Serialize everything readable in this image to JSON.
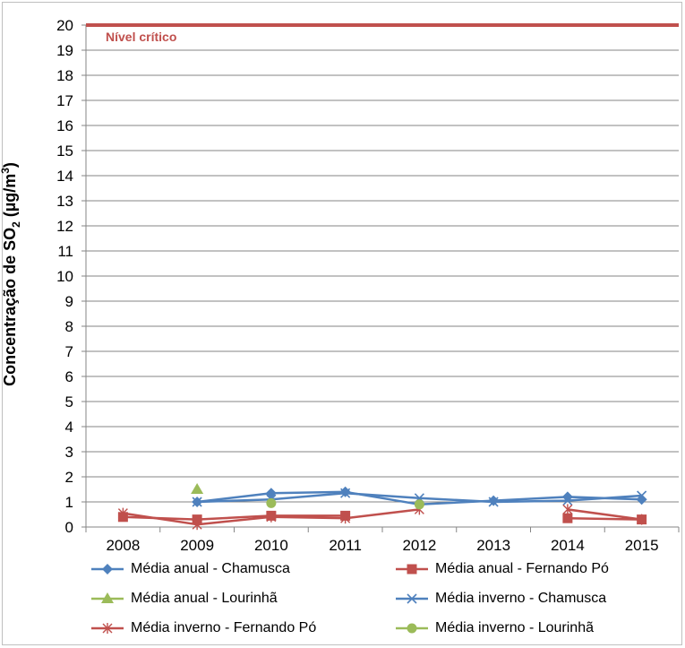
{
  "chart_data": {
    "type": "line",
    "title": "",
    "xlabel": "",
    "ylabel_parts": [
      "Concentração de SO",
      "2",
      " (µg/m",
      "3",
      ")"
    ],
    "categories": [
      "2008",
      "2009",
      "2010",
      "2011",
      "2012",
      "2013",
      "2014",
      "2015"
    ],
    "ylim": [
      0,
      20
    ],
    "yticks": [
      "0",
      "1",
      "2",
      "3",
      "4",
      "5",
      "6",
      "7",
      "8",
      "9",
      "10",
      "11",
      "12",
      "13",
      "14",
      "15",
      "16",
      "17",
      "18",
      "19",
      "20"
    ],
    "grid": true,
    "legend_placement": "bottom",
    "reference_line": {
      "value": 20,
      "label": "Nível crítico",
      "color": "#c0504d"
    },
    "series": [
      {
        "name": "Média anual - Chamusca",
        "color": "#4f81bd",
        "marker": "diamond",
        "values": [
          null,
          1.0,
          1.35,
          1.4,
          0.9,
          1.05,
          1.2,
          1.1
        ]
      },
      {
        "name": "Média anual - Fernando Pó",
        "color": "#c0504d",
        "marker": "square",
        "values": [
          0.4,
          0.3,
          0.45,
          0.45,
          null,
          null,
          0.35,
          0.3
        ]
      },
      {
        "name": "Média anual - Lourinhã",
        "color": "#9bbb59",
        "marker": "triangle",
        "values": [
          null,
          1.5,
          null,
          null,
          null,
          null,
          null,
          null
        ]
      },
      {
        "name": "Média inverno - Chamusca",
        "color": "#4f81bd",
        "marker": "x",
        "values": [
          null,
          1.0,
          1.1,
          1.35,
          1.15,
          1.0,
          1.05,
          1.25
        ]
      },
      {
        "name": "Média inverno - Fernando Pó",
        "color": "#c0504d",
        "marker": "star",
        "values": [
          0.55,
          0.1,
          0.4,
          0.35,
          0.7,
          null,
          0.7,
          0.3
        ]
      },
      {
        "name": "Média inverno - Lourinhã",
        "color": "#9bbb59",
        "marker": "circle",
        "values": [
          null,
          null,
          0.95,
          null,
          0.9,
          null,
          null,
          null
        ]
      }
    ]
  }
}
